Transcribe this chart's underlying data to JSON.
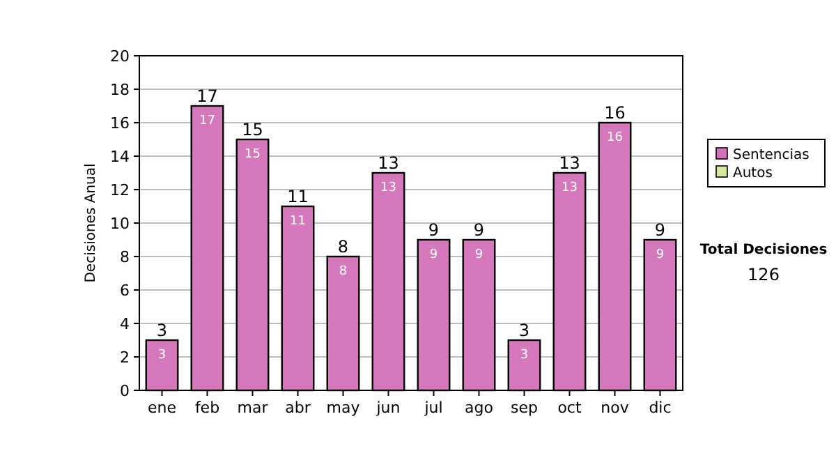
{
  "chart_data": {
    "type": "bar",
    "ylabel": "Decisiones Anual",
    "categories": [
      "ene",
      "feb",
      "mar",
      "abr",
      "may",
      "jun",
      "jul",
      "ago",
      "sep",
      "oct",
      "nov",
      "dic"
    ],
    "series": [
      {
        "name": "Sentencias",
        "color": "#d472b8",
        "values": [
          3,
          17,
          15,
          11,
          8,
          13,
          9,
          9,
          3,
          13,
          16,
          9
        ],
        "value_labels": [
          "3",
          "17",
          "15",
          "11",
          "8",
          "13",
          "9",
          "9",
          "3",
          "13",
          "16",
          "9"
        ]
      },
      {
        "name": "Autos",
        "color": "#d4e8a0",
        "values": [
          null,
          null,
          null,
          null,
          null,
          null,
          null,
          null,
          null,
          null,
          null,
          null
        ]
      }
    ],
    "ylim": [
      0,
      20
    ],
    "yticks": [
      0,
      2,
      4,
      6,
      8,
      10,
      12,
      14,
      16,
      18,
      20
    ],
    "grid": "y",
    "legend": "right",
    "annotations": [
      "Total Decisiones",
      "126",
      {
        "text": "3",
        "x": "ene",
        "y": 3
      },
      {
        "text": "17",
        "x": "feb",
        "y": 17
      },
      {
        "text": "15",
        "x": "mar",
        "y": 15
      },
      {
        "text": "11",
        "x": "abr",
        "y": 11
      },
      {
        "text": "8",
        "x": "may",
        "y": 8
      },
      {
        "text": "13",
        "x": "jun",
        "y": 13
      },
      {
        "text": "9",
        "x": "jul",
        "y": 9
      },
      {
        "text": "9",
        "x": "ago",
        "y": 9
      },
      {
        "text": "3",
        "x": "sep",
        "y": 3
      },
      {
        "text": "13",
        "x": "oct",
        "y": 13
      },
      {
        "text": "16",
        "x": "nov",
        "y": 16
      },
      {
        "text": "9",
        "x": "dic",
        "y": 9
      }
    ]
  }
}
